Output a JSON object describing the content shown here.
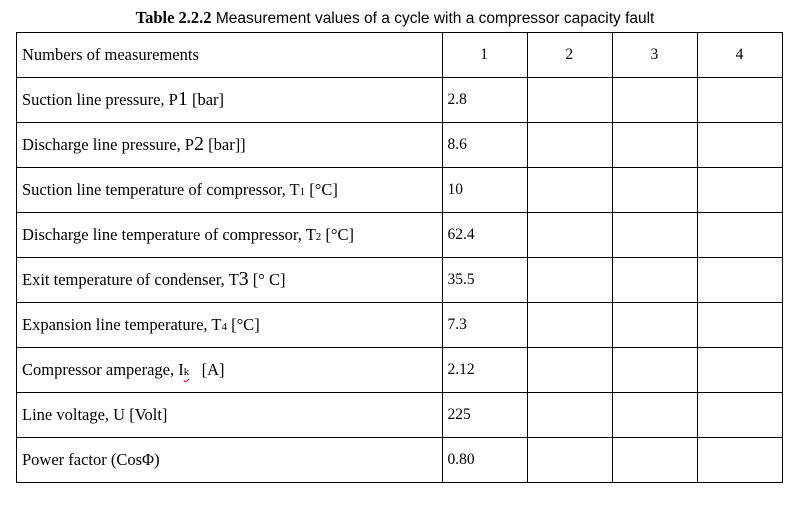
{
  "caption": {
    "label": "Table 2.2.2",
    "text": " Measurement values of a cycle with a compressor capacity fault"
  },
  "table": {
    "header": {
      "label": "Numbers of measurements",
      "columns": [
        "1",
        "2",
        "3",
        "4"
      ]
    },
    "rows": [
      {
        "pre": "Suction line pressure, P",
        "sub": "1",
        "post": " [bar]",
        "values": [
          "2.8",
          "",
          "",
          ""
        ]
      },
      {
        "pre": "Discharge line pressure, P",
        "sub": "2",
        "post": " [bar]]",
        "values": [
          "8.6",
          "",
          "",
          ""
        ]
      },
      {
        "pre": "Suction line temperature of compressor, T",
        "sub": "1",
        "post": " [°C]",
        "values": [
          "10",
          "",
          "",
          ""
        ]
      },
      {
        "pre": "Discharge line temperature of compressor, T",
        "sub": "2",
        "post": " [°C]",
        "values": [
          "62.4",
          "",
          "",
          ""
        ]
      },
      {
        "pre": "Exit temperature of condenser, T",
        "sub": "3",
        "post": " [° C]",
        "values": [
          "35.5",
          "",
          "",
          ""
        ]
      },
      {
        "pre": "Expansion line temperature, T",
        "sub": "4",
        "post": " [°C]",
        "values": [
          "7.3",
          "",
          "",
          ""
        ]
      },
      {
        "pre": "Compressor amperage, I",
        "sub": "k",
        "post": "   [A]",
        "values": [
          "2.12",
          "",
          "",
          ""
        ]
      },
      {
        "pre": "Line voltage, U [Volt]",
        "sub": "",
        "post": "",
        "values": [
          "225",
          "",
          "",
          ""
        ]
      },
      {
        "pre": "Power factor (CosΦ)",
        "sub": "",
        "post": "",
        "values": [
          "0.80",
          "",
          "",
          ""
        ]
      }
    ]
  }
}
